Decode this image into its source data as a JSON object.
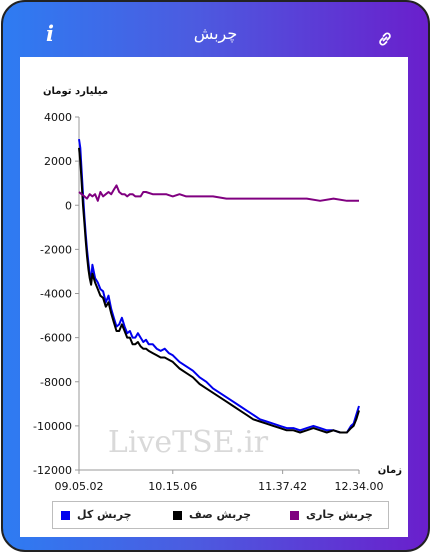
{
  "header": {
    "title": "چربش",
    "info_glyph": "i",
    "info_icon": "info-icon",
    "link_icon": "link-icon"
  },
  "chart_data": {
    "type": "line",
    "title": "",
    "ylabel": "میلیارد تومان",
    "xlabel": "زمان",
    "ylim": [
      -12000,
      4000
    ],
    "yticks": [
      4000,
      2000,
      0,
      -2000,
      -4000,
      -6000,
      -8000,
      -10000,
      -12000
    ],
    "xticks": [
      "09.05.02",
      "10.15.06",
      "11.37.42",
      "12.34.00"
    ],
    "watermark": "LiveTSE.ir",
    "x_unit": "minutes_from_first_tick",
    "x_tick_positions": [
      0,
      70,
      152,
      209
    ],
    "series": [
      {
        "name": "چربش کل",
        "color": "#0000ee",
        "x": [
          0,
          1,
          2,
          3,
          4,
          5,
          6,
          7,
          8,
          9,
          10,
          12,
          14,
          16,
          18,
          20,
          22,
          24,
          26,
          28,
          30,
          32,
          34,
          36,
          38,
          40,
          42,
          44,
          46,
          48,
          50,
          52,
          55,
          58,
          61,
          64,
          67,
          70,
          75,
          80,
          85,
          90,
          95,
          100,
          105,
          110,
          115,
          120,
          125,
          130,
          135,
          140,
          145,
          150,
          155,
          160,
          165,
          170,
          175,
          180,
          185,
          190,
          195,
          200,
          203,
          205,
          207,
          209
        ],
        "y": [
          3000,
          2600,
          1500,
          500,
          -500,
          -1300,
          -2000,
          -2600,
          -3100,
          -3400,
          -2700,
          -3300,
          -3500,
          -3800,
          -3900,
          -4400,
          -4100,
          -4700,
          -5100,
          -5500,
          -5400,
          -5100,
          -5500,
          -5800,
          -5700,
          -6000,
          -6000,
          -5800,
          -6000,
          -6200,
          -6100,
          -6300,
          -6300,
          -6500,
          -6600,
          -6500,
          -6700,
          -6800,
          -7100,
          -7300,
          -7500,
          -7800,
          -8000,
          -8300,
          -8500,
          -8700,
          -8900,
          -9100,
          -9300,
          -9500,
          -9700,
          -9800,
          -9900,
          -10000,
          -10100,
          -10100,
          -10200,
          -10100,
          -10000,
          -10100,
          -10200,
          -10200,
          -10300,
          -10300,
          -10000,
          -9900,
          -9500,
          -9100
        ]
      },
      {
        "name": "چربش صف",
        "color": "#000000",
        "x": [
          0,
          1,
          2,
          3,
          4,
          5,
          6,
          7,
          8,
          9,
          10,
          12,
          14,
          16,
          18,
          20,
          22,
          24,
          26,
          28,
          30,
          32,
          34,
          36,
          38,
          40,
          42,
          44,
          46,
          48,
          50,
          52,
          55,
          58,
          61,
          64,
          67,
          70,
          75,
          80,
          85,
          90,
          95,
          100,
          105,
          110,
          115,
          120,
          125,
          130,
          135,
          140,
          145,
          150,
          155,
          160,
          165,
          170,
          175,
          180,
          185,
          190,
          195,
          200,
          203,
          205,
          207,
          209
        ],
        "y": [
          2600,
          2000,
          1000,
          0,
          -800,
          -1600,
          -2300,
          -2900,
          -3300,
          -3600,
          -3100,
          -3500,
          -3800,
          -4100,
          -4200,
          -4600,
          -4400,
          -4900,
          -5300,
          -5700,
          -5700,
          -5400,
          -5700,
          -6000,
          -6000,
          -6300,
          -6300,
          -6200,
          -6400,
          -6500,
          -6500,
          -6600,
          -6700,
          -6800,
          -6900,
          -6900,
          -7000,
          -7100,
          -7400,
          -7600,
          -7800,
          -8100,
          -8300,
          -8500,
          -8700,
          -8900,
          -9100,
          -9300,
          -9500,
          -9700,
          -9800,
          -9900,
          -10000,
          -10100,
          -10200,
          -10200,
          -10300,
          -10200,
          -10100,
          -10200,
          -10300,
          -10200,
          -10300,
          -10300,
          -10100,
          -10000,
          -9700,
          -9300
        ]
      },
      {
        "name": "چربش جاری",
        "color": "#800080",
        "x": [
          0,
          2,
          4,
          6,
          8,
          10,
          12,
          14,
          16,
          18,
          20,
          22,
          24,
          26,
          28,
          30,
          32,
          34,
          36,
          38,
          40,
          42,
          44,
          46,
          48,
          50,
          55,
          60,
          65,
          70,
          75,
          80,
          85,
          90,
          95,
          100,
          110,
          120,
          130,
          140,
          150,
          160,
          170,
          180,
          190,
          200,
          205,
          209
        ],
        "y": [
          600,
          500,
          400,
          300,
          500,
          400,
          500,
          200,
          600,
          400,
          500,
          600,
          500,
          700,
          900,
          600,
          500,
          500,
          400,
          500,
          500,
          400,
          400,
          400,
          600,
          600,
          500,
          500,
          500,
          400,
          500,
          400,
          400,
          400,
          400,
          400,
          300,
          300,
          300,
          300,
          300,
          300,
          300,
          200,
          300,
          200,
          200,
          200
        ]
      }
    ]
  }
}
